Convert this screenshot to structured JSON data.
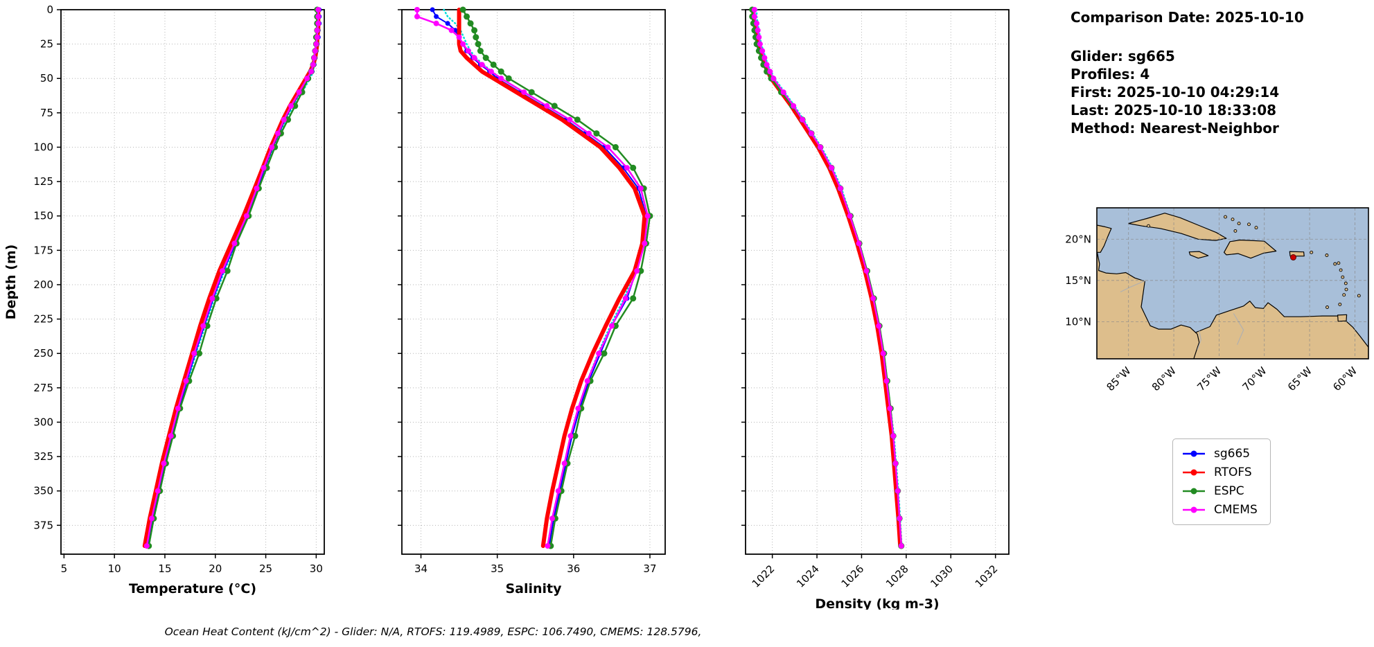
{
  "info_panel": {
    "comparison_date": "Comparison Date: 2025-10-10",
    "lines": [
      "Glider: sg665",
      "Profiles: 4",
      "First: 2025-10-10 04:29:14",
      "Last: 2025-10-10 18:33:08",
      "Method: Nearest-Neighbor"
    ]
  },
  "footer": "Ocean Heat Content (kJ/cm^2) - Glider: N/A,  RTOFS: 119.4989,  ESPC: 106.7490,  CMEMS: 128.5796,",
  "legend": {
    "entries": [
      {
        "label": "sg665",
        "color": "#0000ff"
      },
      {
        "label": "RTOFS",
        "color": "#ff0000"
      },
      {
        "label": "ESPC",
        "color": "#228B22"
      },
      {
        "label": "CMEMS",
        "color": "#ff00ff"
      }
    ]
  },
  "map": {
    "lon_range": [
      -88.5,
      -58.5
    ],
    "lat_range": [
      5.5,
      23.8
    ],
    "lon_ticks": [
      {
        "v": -85,
        "label": "85°W"
      },
      {
        "v": -80,
        "label": "80°W"
      },
      {
        "v": -75,
        "label": "75°W"
      },
      {
        "v": -70,
        "label": "70°W"
      },
      {
        "v": -65,
        "label": "65°W"
      },
      {
        "v": -60,
        "label": "60°W"
      }
    ],
    "lat_ticks": [
      {
        "v": 20,
        "label": "20°N"
      },
      {
        "v": 15,
        "label": "15°N"
      },
      {
        "v": 10,
        "label": "10°N"
      }
    ],
    "marker": {
      "lon": -66.8,
      "lat": 17.8,
      "color": "#cc0000"
    },
    "ocean_color": "#a8bfd9",
    "land_color": "#ddbe8c"
  },
  "chart_data": [
    {
      "id": "temperature",
      "type": "line",
      "xlabel": "Temperature (°C)",
      "ylabel": "Depth (m)",
      "xlim": [
        4.7,
        30.8
      ],
      "ylim": [
        0,
        396
      ],
      "xticks": [
        5,
        10,
        15,
        20,
        25,
        30
      ],
      "yticks": [
        0,
        25,
        50,
        75,
        100,
        125,
        150,
        175,
        200,
        225,
        250,
        275,
        300,
        325,
        350,
        375
      ],
      "show_ytick_labels": true,
      "xtick_rotation": 0,
      "xlabel_y": 856,
      "depths": [
        0,
        5,
        10,
        15,
        20,
        25,
        30,
        35,
        40,
        45,
        50,
        60,
        70,
        80,
        90,
        100,
        115,
        130,
        150,
        170,
        190,
        210,
        230,
        250,
        270,
        290,
        310,
        330,
        350,
        370,
        390
      ],
      "series": [
        {
          "name": "sg665 profiles",
          "color": "#00dddd",
          "width": 2.5,
          "dash": "1 4",
          "marker_r": 0,
          "values": [
            30.3,
            30.3,
            30.2,
            30.2,
            30.1,
            30.1,
            30.0,
            29.9,
            29.8,
            29.7,
            29.4,
            28.6,
            27.7,
            27.0,
            26.4,
            25.8,
            25.0,
            24.3,
            23.3,
            22.1,
            20.9,
            19.9,
            19.0,
            18.1,
            17.3,
            16.5,
            15.8,
            15.1,
            14.5,
            13.9,
            13.4
          ]
        },
        {
          "name": "sg665",
          "color": "#0000ff",
          "width": 2,
          "dash": "",
          "marker_r": 3.5,
          "values": [
            30.3,
            30.3,
            30.3,
            30.2,
            30.2,
            30.1,
            30.0,
            29.9,
            29.8,
            29.6,
            29.2,
            28.4,
            27.6,
            26.9,
            26.3,
            25.7,
            24.9,
            24.2,
            23.2,
            22.0,
            20.8,
            19.8,
            18.9,
            18.0,
            17.2,
            16.4,
            15.7,
            15.0,
            14.4,
            13.8,
            13.3
          ]
        },
        {
          "name": "RTOFS",
          "color": "#ff0000",
          "width": 6,
          "dash": "",
          "marker_r": 0,
          "values": [
            30.2,
            30.2,
            30.2,
            30.2,
            30.1,
            30.1,
            30.0,
            29.9,
            29.7,
            29.4,
            29.0,
            28.2,
            27.4,
            26.7,
            26.1,
            25.5,
            24.7,
            23.9,
            22.8,
            21.6,
            20.4,
            19.4,
            18.5,
            17.7,
            16.9,
            16.1,
            15.4,
            14.7,
            14.1,
            13.5,
            13.0
          ]
        },
        {
          "name": "ESPC",
          "color": "#228B22",
          "width": 2.5,
          "dash": "",
          "marker_r": 4.5,
          "values": [
            30.1,
            30.1,
            30.1,
            30.1,
            30.0,
            30.0,
            29.9,
            29.8,
            29.7,
            29.5,
            29.2,
            28.6,
            27.9,
            27.2,
            26.5,
            25.9,
            25.1,
            24.3,
            23.3,
            22.1,
            21.2,
            20.1,
            19.2,
            18.4,
            17.4,
            16.5,
            15.8,
            15.1,
            14.5,
            13.9,
            13.4
          ]
        },
        {
          "name": "CMEMS",
          "color": "#ff00ff",
          "width": 2.5,
          "dash": "",
          "marker_r": 4,
          "values": [
            30.2,
            30.2,
            30.2,
            30.1,
            30.1,
            30.0,
            29.9,
            29.8,
            29.7,
            29.5,
            29.1,
            28.3,
            27.5,
            26.8,
            26.2,
            25.6,
            24.8,
            24.1,
            23.1,
            21.9,
            20.7,
            19.7,
            18.8,
            17.9,
            17.1,
            16.3,
            15.6,
            14.9,
            14.3,
            13.7,
            13.2
          ]
        }
      ]
    },
    {
      "id": "salinity",
      "type": "line",
      "xlabel": "Salinity",
      "ylabel": "",
      "xlim": [
        33.75,
        37.2
      ],
      "ylim": [
        0,
        396
      ],
      "xticks": [
        34,
        35,
        36,
        37
      ],
      "yticks": [
        0,
        25,
        50,
        75,
        100,
        125,
        150,
        175,
        200,
        225,
        250,
        275,
        300,
        325,
        350,
        375
      ],
      "show_ytick_labels": false,
      "xtick_rotation": 0,
      "xlabel_y": 856,
      "depths": [
        0,
        5,
        10,
        15,
        20,
        25,
        30,
        35,
        40,
        45,
        50,
        60,
        70,
        80,
        90,
        100,
        115,
        130,
        150,
        170,
        190,
        210,
        230,
        250,
        270,
        290,
        310,
        330,
        350,
        370,
        390
      ],
      "series": [
        {
          "name": "sg665 profiles",
          "color": "#00dddd",
          "width": 2.5,
          "dash": "1 4",
          "marker_r": 0,
          "values": [
            34.3,
            34.35,
            34.45,
            34.52,
            34.56,
            34.6,
            34.65,
            34.72,
            34.82,
            34.93,
            35.05,
            35.35,
            35.65,
            35.95,
            36.2,
            36.45,
            36.7,
            36.88,
            36.96,
            36.9,
            36.8,
            36.66,
            36.48,
            36.32,
            36.18,
            36.06,
            35.96,
            35.88,
            35.8,
            35.72,
            35.66
          ]
        },
        {
          "name": "sg665",
          "color": "#0000ff",
          "width": 2,
          "dash": "",
          "marker_r": 3.5,
          "values": [
            34.15,
            34.2,
            34.35,
            34.45,
            34.5,
            34.55,
            34.6,
            34.68,
            34.78,
            34.9,
            35.0,
            35.3,
            35.6,
            35.9,
            36.15,
            36.4,
            36.65,
            36.85,
            36.95,
            36.92,
            36.82,
            36.7,
            36.5,
            36.35,
            36.2,
            36.08,
            35.98,
            35.9,
            35.82,
            35.74,
            35.68
          ]
        },
        {
          "name": "RTOFS",
          "color": "#ff0000",
          "width": 6,
          "dash": "",
          "marker_r": 0,
          "values": [
            34.5,
            34.5,
            34.5,
            34.5,
            34.5,
            34.5,
            34.52,
            34.6,
            34.7,
            34.8,
            34.95,
            35.25,
            35.55,
            35.85,
            36.1,
            36.35,
            36.6,
            36.8,
            36.93,
            36.9,
            36.8,
            36.6,
            36.42,
            36.25,
            36.1,
            35.98,
            35.88,
            35.8,
            35.72,
            35.65,
            35.6
          ]
        },
        {
          "name": "ESPC",
          "color": "#228B22",
          "width": 2.5,
          "dash": "",
          "marker_r": 4.5,
          "values": [
            34.55,
            34.6,
            34.65,
            34.7,
            34.72,
            34.75,
            34.78,
            34.85,
            34.95,
            35.05,
            35.15,
            35.45,
            35.75,
            36.05,
            36.3,
            36.55,
            36.78,
            36.92,
            37.0,
            36.95,
            36.88,
            36.78,
            36.55,
            36.4,
            36.22,
            36.1,
            36.02,
            35.92,
            35.84,
            35.76,
            35.7
          ]
        },
        {
          "name": "CMEMS",
          "color": "#ff00ff",
          "width": 2.5,
          "dash": "",
          "marker_r": 4,
          "values": [
            33.95,
            33.95,
            34.2,
            34.4,
            34.5,
            34.55,
            34.62,
            34.7,
            34.8,
            34.92,
            35.05,
            35.35,
            35.65,
            35.95,
            36.2,
            36.45,
            36.7,
            36.88,
            36.97,
            36.93,
            36.83,
            36.68,
            36.5,
            36.33,
            36.18,
            36.06,
            35.96,
            35.88,
            35.8,
            35.72,
            35.66
          ]
        }
      ]
    },
    {
      "id": "density",
      "type": "line",
      "xlabel": "Density (kg m-3)",
      "ylabel": "",
      "xlim": [
        1020.8,
        1032.6
      ],
      "ylim": [
        0,
        396
      ],
      "xticks": [
        1022,
        1024,
        1026,
        1028,
        1030,
        1032
      ],
      "yticks": [
        0,
        25,
        50,
        75,
        100,
        125,
        150,
        175,
        200,
        225,
        250,
        275,
        300,
        325,
        350,
        375
      ],
      "show_ytick_labels": false,
      "xtick_rotation": 45,
      "xlabel_y": 878,
      "depths": [
        0,
        5,
        10,
        15,
        20,
        25,
        30,
        35,
        40,
        45,
        50,
        60,
        70,
        80,
        90,
        100,
        115,
        130,
        150,
        170,
        190,
        210,
        230,
        250,
        270,
        290,
        310,
        330,
        350,
        370,
        390
      ],
      "series": [
        {
          "name": "sg665 profiles",
          "color": "#00dddd",
          "width": 2.5,
          "dash": "1 4",
          "marker_r": 0,
          "values": [
            1021.3,
            1021.3,
            1021.35,
            1021.4,
            1021.45,
            1021.5,
            1021.6,
            1021.7,
            1021.8,
            1021.95,
            1022.1,
            1022.55,
            1023.0,
            1023.4,
            1023.8,
            1024.2,
            1024.7,
            1025.1,
            1025.5,
            1025.9,
            1026.25,
            1026.55,
            1026.8,
            1027.0,
            1027.15,
            1027.3,
            1027.45,
            1027.55,
            1027.65,
            1027.73,
            1027.8
          ]
        },
        {
          "name": "sg665",
          "color": "#0000ff",
          "width": 2,
          "dash": "",
          "marker_r": 3.5,
          "values": [
            1021.2,
            1021.2,
            1021.25,
            1021.3,
            1021.35,
            1021.4,
            1021.5,
            1021.6,
            1021.7,
            1021.85,
            1022.0,
            1022.45,
            1022.9,
            1023.3,
            1023.7,
            1024.1,
            1024.6,
            1025.0,
            1025.45,
            1025.85,
            1026.2,
            1026.5,
            1026.75,
            1026.95,
            1027.1,
            1027.25,
            1027.4,
            1027.5,
            1027.6,
            1027.7,
            1027.78
          ]
        },
        {
          "name": "RTOFS",
          "color": "#ff0000",
          "width": 6,
          "dash": "",
          "marker_r": 0,
          "values": [
            1021.15,
            1021.15,
            1021.2,
            1021.25,
            1021.3,
            1021.35,
            1021.45,
            1021.55,
            1021.65,
            1021.8,
            1021.95,
            1022.4,
            1022.85,
            1023.25,
            1023.65,
            1024.05,
            1024.55,
            1024.95,
            1025.4,
            1025.8,
            1026.15,
            1026.45,
            1026.7,
            1026.9,
            1027.05,
            1027.2,
            1027.35,
            1027.45,
            1027.55,
            1027.65,
            1027.73
          ]
        },
        {
          "name": "ESPC",
          "color": "#228B22",
          "width": 2.5,
          "dash": "",
          "marker_r": 4.5,
          "values": [
            1021.1,
            1021.1,
            1021.15,
            1021.2,
            1021.25,
            1021.3,
            1021.4,
            1021.5,
            1021.6,
            1021.75,
            1021.95,
            1022.4,
            1022.9,
            1023.35,
            1023.75,
            1024.15,
            1024.65,
            1025.05,
            1025.5,
            1025.9,
            1026.25,
            1026.55,
            1026.8,
            1027.0,
            1027.15,
            1027.3,
            1027.42,
            1027.52,
            1027.62,
            1027.7,
            1027.78
          ]
        },
        {
          "name": "CMEMS",
          "color": "#ff00ff",
          "width": 2.5,
          "dash": "",
          "marker_r": 4,
          "values": [
            1021.2,
            1021.2,
            1021.3,
            1021.35,
            1021.4,
            1021.45,
            1021.55,
            1021.65,
            1021.75,
            1021.9,
            1022.05,
            1022.5,
            1022.95,
            1023.35,
            1023.75,
            1024.15,
            1024.65,
            1025.05,
            1025.48,
            1025.88,
            1026.22,
            1026.52,
            1026.77,
            1026.97,
            1027.12,
            1027.27,
            1027.42,
            1027.52,
            1027.62,
            1027.7,
            1027.78
          ]
        }
      ]
    }
  ]
}
